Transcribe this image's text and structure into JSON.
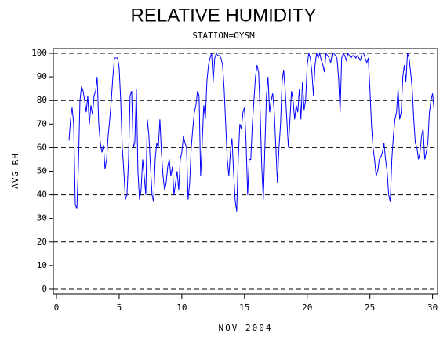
{
  "chart_data": {
    "type": "line",
    "title": "RELATIVE HUMIDITY",
    "subtitle": "STATION=OYSM",
    "x_label": "NOV 2004",
    "y_label": "AVG_RH",
    "color": "#0000ff",
    "grid": true,
    "xlim": [
      -0.25,
      30.4
    ],
    "ylim": [
      -2,
      102
    ],
    "xticks": [
      0,
      5,
      10,
      15,
      20,
      25,
      30
    ],
    "yticks": [
      0,
      10,
      20,
      30,
      40,
      50,
      60,
      70,
      80,
      90,
      100
    ],
    "x": [
      1,
      1.125,
      1.25,
      1.375,
      1.5,
      1.625,
      1.75,
      1.875,
      2,
      2.125,
      2.25,
      2.375,
      2.5,
      2.625,
      2.75,
      2.875,
      3,
      3.125,
      3.25,
      3.375,
      3.5,
      3.625,
      3.75,
      3.875,
      4,
      4.125,
      4.25,
      4.375,
      4.5,
      4.625,
      4.75,
      4.875,
      5,
      5.125,
      5.25,
      5.375,
      5.5,
      5.625,
      5.75,
      5.875,
      6,
      6.125,
      6.25,
      6.375,
      6.5,
      6.625,
      6.75,
      6.875,
      7,
      7.125,
      7.25,
      7.375,
      7.5,
      7.625,
      7.75,
      7.875,
      8,
      8.125,
      8.25,
      8.375,
      8.5,
      8.625,
      8.75,
      8.875,
      9,
      9.125,
      9.25,
      9.375,
      9.5,
      9.625,
      9.75,
      9.875,
      10,
      10.125,
      10.25,
      10.375,
      10.5,
      10.625,
      10.75,
      10.875,
      11,
      11.125,
      11.25,
      11.375,
      11.5,
      11.625,
      11.75,
      11.875,
      12,
      12.125,
      12.25,
      12.375,
      12.5,
      12.625,
      12.75,
      12.875,
      13,
      13.125,
      13.25,
      13.375,
      13.5,
      13.625,
      13.75,
      13.875,
      14,
      14.125,
      14.25,
      14.375,
      14.5,
      14.625,
      14.75,
      14.875,
      15,
      15.125,
      15.25,
      15.375,
      15.5,
      15.625,
      15.75,
      15.875,
      16,
      16.125,
      16.25,
      16.375,
      16.5,
      16.625,
      16.75,
      16.875,
      17,
      17.125,
      17.25,
      17.375,
      17.5,
      17.625,
      17.75,
      17.875,
      18,
      18.125,
      18.25,
      18.375,
      18.5,
      18.625,
      18.75,
      18.875,
      19,
      19.125,
      19.25,
      19.375,
      19.5,
      19.625,
      19.75,
      19.875,
      20,
      20.125,
      20.25,
      20.375,
      20.5,
      20.625,
      20.75,
      20.875,
      21,
      21.125,
      21.25,
      21.375,
      21.5,
      21.625,
      21.75,
      21.875,
      22,
      22.125,
      22.25,
      22.375,
      22.5,
      22.625,
      22.75,
      22.875,
      23,
      23.125,
      23.25,
      23.375,
      23.5,
      23.625,
      23.75,
      23.875,
      24,
      24.125,
      24.25,
      24.375,
      24.5,
      24.625,
      24.75,
      24.875,
      25,
      25.125,
      25.25,
      25.375,
      25.5,
      25.625,
      25.75,
      25.875,
      26,
      26.125,
      26.25,
      26.375,
      26.5,
      26.625,
      26.75,
      26.875,
      27,
      27.125,
      27.25,
      27.375,
      27.5,
      27.625,
      27.75,
      27.875,
      28,
      28.125,
      28.25,
      28.375,
      28.5,
      28.625,
      28.75,
      28.875,
      29,
      29.125,
      29.25,
      29.375,
      29.5,
      29.625,
      29.75,
      29.875,
      30,
      30.125
    ],
    "values": [
      63,
      72,
      77,
      70,
      36,
      34,
      52,
      80,
      86,
      84,
      80,
      75,
      82,
      70,
      78,
      74,
      82,
      84,
      90,
      70,
      62,
      58,
      61,
      51,
      55,
      65,
      72,
      80,
      90,
      98,
      98,
      98,
      94,
      80,
      60,
      50,
      38,
      40,
      55,
      82,
      84,
      60,
      62,
      85,
      50,
      38,
      42,
      55,
      48,
      40,
      72,
      65,
      52,
      40,
      37,
      55,
      62,
      60,
      72,
      58,
      48,
      42,
      45,
      52,
      55,
      48,
      52,
      40,
      45,
      50,
      42,
      55,
      58,
      65,
      62,
      60,
      38,
      45,
      60,
      68,
      75,
      78,
      84,
      82,
      48,
      62,
      78,
      72,
      88,
      95,
      98,
      100,
      88,
      98,
      100,
      99,
      99,
      98,
      95,
      85,
      70,
      55,
      48,
      58,
      64,
      50,
      38,
      33,
      55,
      70,
      68,
      75,
      77,
      62,
      40,
      55,
      55,
      70,
      80,
      90,
      95,
      92,
      75,
      52,
      38,
      60,
      82,
      90,
      75,
      80,
      83,
      75,
      60,
      45,
      60,
      70,
      88,
      93,
      84,
      72,
      60,
      72,
      84,
      80,
      72,
      78,
      75,
      85,
      72,
      88,
      76,
      80,
      95,
      100,
      98,
      92,
      82,
      95,
      100,
      98,
      100,
      97,
      95,
      92,
      100,
      99,
      98,
      96,
      100,
      100,
      99,
      98,
      90,
      75,
      98,
      100,
      99,
      97,
      100,
      99,
      98,
      99,
      99,
      98,
      99,
      98,
      97,
      100,
      100,
      98,
      96,
      98,
      85,
      70,
      60,
      55,
      48,
      50,
      55,
      56,
      58,
      62,
      55,
      50,
      40,
      37,
      55,
      65,
      72,
      75,
      85,
      72,
      75,
      90,
      95,
      88,
      100,
      98,
      92,
      85,
      72,
      62,
      60,
      55,
      58,
      65,
      68,
      55,
      58,
      62,
      75,
      80,
      83,
      76
    ]
  }
}
